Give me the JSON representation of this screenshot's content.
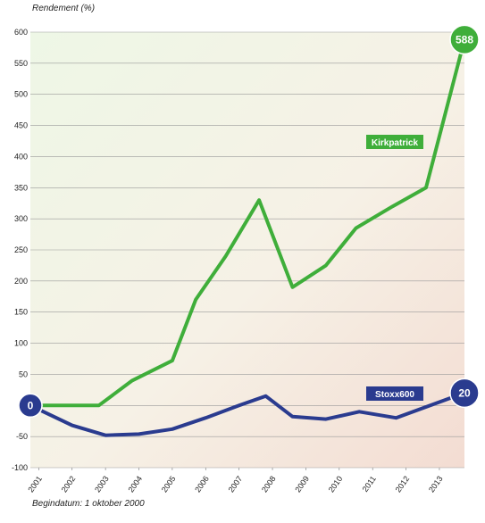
{
  "chart_data": {
    "type": "line",
    "ylabel": "Rendement (%)",
    "footnote": "Begindatum: 1 oktober 2000",
    "ylim": [
      -100,
      600
    ],
    "yticks": [
      -100,
      -50,
      0,
      50,
      100,
      150,
      200,
      250,
      300,
      350,
      400,
      450,
      500,
      550,
      600
    ],
    "xlim": [
      2000.75,
      2013.75
    ],
    "xticks": [
      2001,
      2002,
      2003,
      2004,
      2005,
      2006,
      2007,
      2008,
      2009,
      2010,
      2011,
      2012,
      2013
    ],
    "grid": true,
    "series": [
      {
        "name": "Kirkpatrick",
        "color": "#3fae3a",
        "start_label": "0",
        "end_label": "588",
        "points": [
          [
            2000.75,
            0
          ],
          [
            2001.5,
            0
          ],
          [
            2002.8,
            0
          ],
          [
            2003.8,
            40
          ],
          [
            2005.0,
            72
          ],
          [
            2005.7,
            170
          ],
          [
            2006.6,
            240
          ],
          [
            2007.6,
            330
          ],
          [
            2008.6,
            190
          ],
          [
            2009.6,
            225
          ],
          [
            2010.5,
            285
          ],
          [
            2011.6,
            320
          ],
          [
            2012.6,
            350
          ],
          [
            2013.75,
            588
          ]
        ],
        "label": "Kirkpatrick"
      },
      {
        "name": "Stoxx600",
        "color": "#2a3b8f",
        "start_label": "0",
        "end_label": "20",
        "points": [
          [
            2000.75,
            0
          ],
          [
            2002.0,
            -32
          ],
          [
            2003.0,
            -48
          ],
          [
            2004.0,
            -46
          ],
          [
            2005.0,
            -38
          ],
          [
            2006.0,
            -20
          ],
          [
            2007.0,
            0
          ],
          [
            2007.8,
            15
          ],
          [
            2008.6,
            -18
          ],
          [
            2009.6,
            -22
          ],
          [
            2010.6,
            -10
          ],
          [
            2011.7,
            -20
          ],
          [
            2013.75,
            20
          ]
        ],
        "label": "Stoxx600"
      }
    ]
  }
}
